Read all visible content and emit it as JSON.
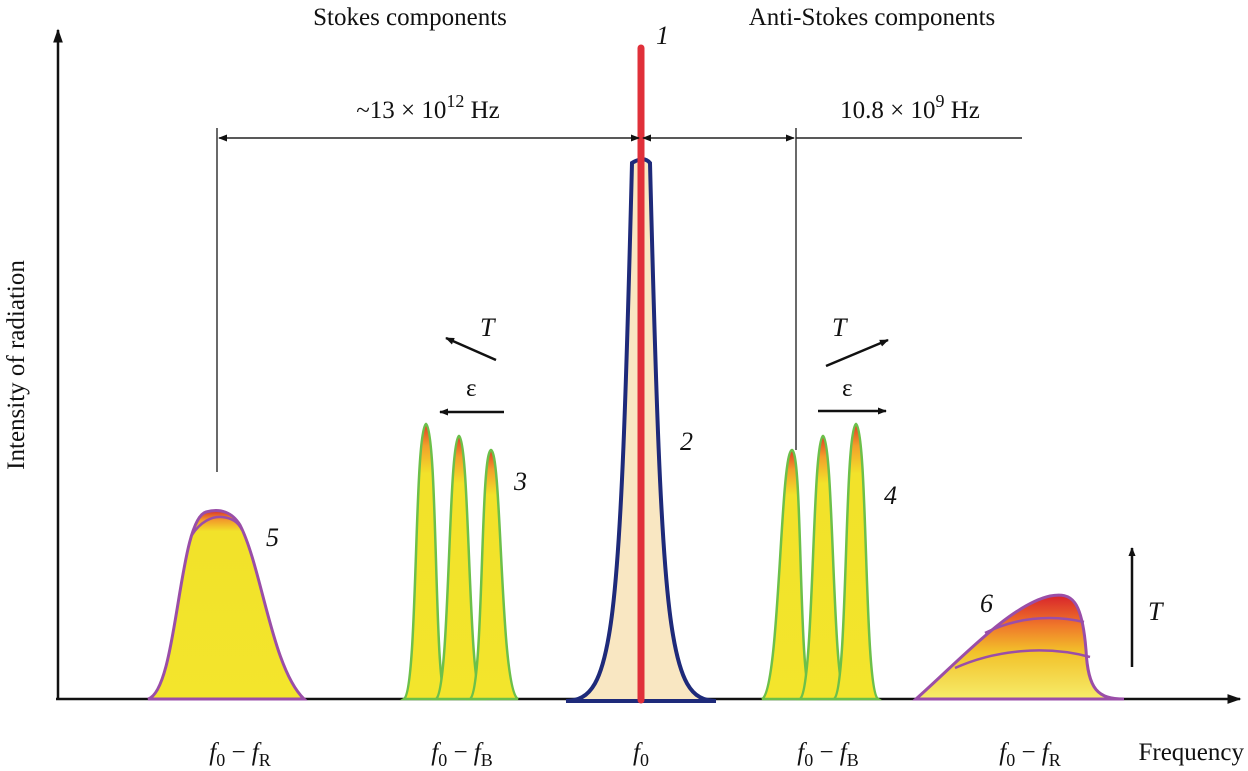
{
  "header": {
    "stokes": "Stokes components",
    "anti_stokes": "Anti-Stokes components"
  },
  "axes": {
    "y_label": "Intensity of radiation",
    "x_label": "Frequency"
  },
  "intervals": {
    "raman_pre": "~13 × 10",
    "raman_exp": "12",
    "raman_post": " Hz",
    "brillouin_pre": "10.8 × 10",
    "brillouin_exp": "9",
    "brillouin_post": " Hz"
  },
  "peak_labels": {
    "p1": "1",
    "p2": "2",
    "p3": "3",
    "p4": "4",
    "p5": "5",
    "p6": "6"
  },
  "arrows": {
    "stokes_T": "T",
    "stokes_eps": "ε",
    "anti_T": "T",
    "anti_eps": "ε",
    "right_T": "T"
  },
  "ticks": {
    "t1": {
      "f": "f",
      "s0": "0",
      "minus": " − ",
      "g": "f",
      "s": "R"
    },
    "t2": {
      "f": "f",
      "s0": "0",
      "minus": " − ",
      "g": "f",
      "s": "B"
    },
    "t3": {
      "f": "f",
      "s0": "0"
    },
    "t4": {
      "f": "f",
      "s0": "0",
      "minus": " − ",
      "g": "f",
      "s": "B"
    },
    "t5": {
      "f": "f",
      "s0": "0",
      "minus": " − ",
      "g": "f",
      "s": "R"
    }
  },
  "colors": {
    "laser": "#e0303a",
    "rayleigh": "#1e2a7a",
    "brillouin_fill": "#f2e22a",
    "brillouin_edge": "#6cc04a",
    "raman_edge": "#9a4ea8",
    "central_fill": "#f9e7c2"
  }
}
